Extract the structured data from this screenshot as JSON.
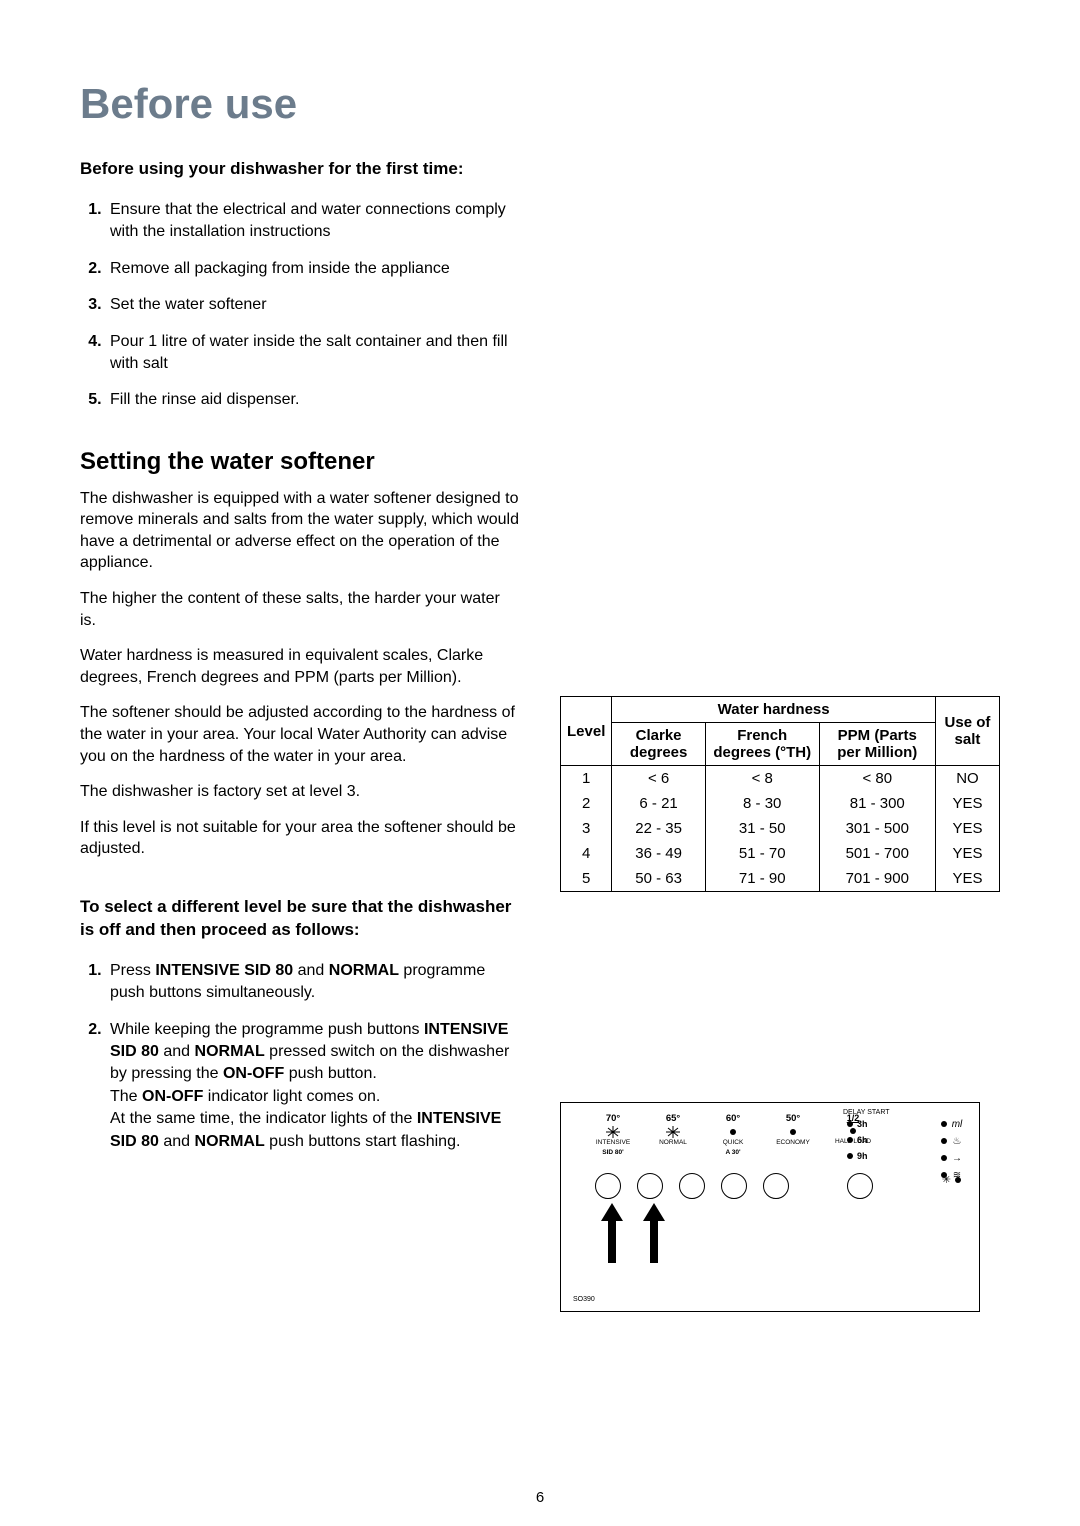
{
  "title_color": "#6c7c8c",
  "title": "Before use",
  "first_time_heading": "Before using your dishwasher for the first time:",
  "steps_a": [
    "Ensure that the electrical and water connections comply with the installation instructions",
    "Remove all packaging from inside the appliance",
    "Set the water softener",
    "Pour 1 litre of water inside the salt container and then fill with salt",
    "Fill the rinse aid dispenser."
  ],
  "section_softener": "Setting the water softener",
  "para": [
    "The dishwasher is equipped with a water softener designed to remove minerals and salts from the water supply, which would have a detrimental or adverse effect on the operation of the appliance.",
    "The higher the content of these salts, the harder your water is.",
    "Water hardness is measured in equivalent scales, Clarke degrees, French degrees and PPM (parts per Million).",
    "The softener should be adjusted according to the hardness of the water in your area. Your local Water Authority can advise you on the hardness of the water in your area.",
    "The dishwasher is factory set at level 3.",
    "If this level is not suitable for your area the softener should be adjusted."
  ],
  "table": {
    "header_group": "Water hardness",
    "columns": [
      "Level",
      "Clarke degrees",
      "French degrees (°TH)",
      "PPM (Parts per Million)",
      "Use of salt"
    ],
    "rows": [
      [
        "1",
        "< 6",
        "< 8",
        "< 80",
        "NO"
      ],
      [
        "2",
        "6 - 21",
        "8 - 30",
        "81 - 300",
        "YES"
      ],
      [
        "3",
        "22 - 35",
        "31 - 50",
        "301 - 500",
        "YES"
      ],
      [
        "4",
        "36 - 49",
        "51 - 70",
        "501 - 700",
        "YES"
      ],
      [
        "5",
        "50 - 63",
        "71 - 90",
        "701 - 900",
        "YES"
      ]
    ]
  },
  "select_heading": "To select a different level be sure that the dishwasher is off and then proceed as follows:",
  "steps_b": [
    {
      "pre": "Press ",
      "b1": "INTENSIVE SID 80",
      "mid": " and ",
      "b2": "NORMAL",
      "post": " programme push buttons simultaneously."
    },
    {
      "text_html": "While keeping the programme push buttons <b>INTENSIVE SID 80</b> and <b>NORMAL</b> pressed switch on the dishwasher by pressing the <b>ON-OFF</b> push button.<br>The <b>ON-OFF</b> indicator light comes on.<br>At the same time, the indicator lights of the <b>INTENSIVE SID 80</b> and <b>NORMAL</b> push buttons start flashing."
    }
  ],
  "panel": {
    "programs": [
      {
        "temp": "70°",
        "icon": "sun",
        "label": "INTENSIVE",
        "sublabel": "SID 80'"
      },
      {
        "temp": "65°",
        "icon": "sun",
        "label": "NORMAL",
        "sublabel": ""
      },
      {
        "temp": "60°",
        "icon": "dot",
        "label": "QUICK",
        "sublabel": "A 30'"
      },
      {
        "temp": "50°",
        "icon": "dot",
        "label": "ECONOMY",
        "sublabel": ""
      },
      {
        "temp": "1/2",
        "icon": "dot",
        "label": "HALF LOAD",
        "sublabel": "",
        "half": true
      }
    ],
    "delay_title": "DELAY START",
    "delays": [
      "3h",
      "6h",
      "9h"
    ],
    "indicators": [
      "ml-icon",
      "steam-icon",
      "end-icon",
      "stack-icon"
    ],
    "code": "SO390"
  },
  "page_number": "6"
}
